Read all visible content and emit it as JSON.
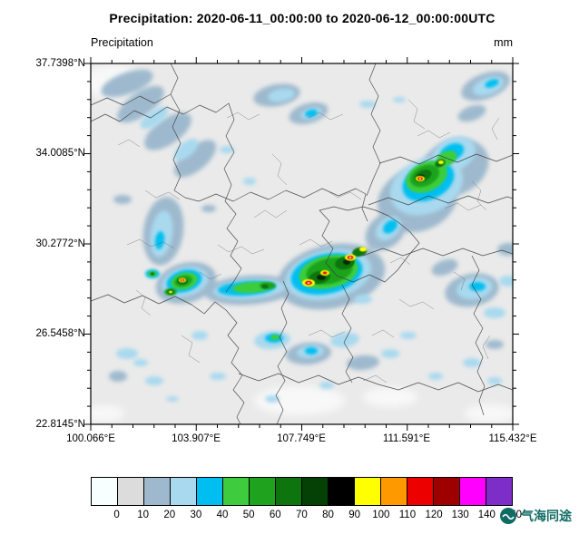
{
  "title": "Precipitation: 2020-06-11_00:00:00 to 2020-06-12_00:00:00UTC",
  "plot_header": {
    "left_label": "Precipitation",
    "right_label": "mm"
  },
  "y_axis": {
    "tick_labels": [
      "37.7398°N",
      "34.0085°N",
      "30.2772°N",
      "26.5458°N",
      "22.8145°N"
    ]
  },
  "x_axis": {
    "tick_labels": [
      "100.066°E",
      "103.907°E",
      "107.749°E",
      "111.591°E",
      "115.432°E"
    ]
  },
  "colorbar": {
    "tick_labels": [
      "0",
      "10",
      "20",
      "30",
      "40",
      "50",
      "60",
      "70",
      "80",
      "90",
      "100",
      "110",
      "120",
      "130",
      "140",
      "150"
    ],
    "colors": [
      "#F8FFFF",
      "#DCDCDC",
      "#9EB9CD",
      "#A8D9EF",
      "#00BFF0",
      "#3ECC3E",
      "#1FA31F",
      "#0E750E",
      "#054005",
      "#000000",
      "#FFFF00",
      "#FF9900",
      "#EC0000",
      "#9E0000",
      "#FF00FF",
      "#7D2EC8"
    ]
  },
  "watermark": {
    "text": "气海同途",
    "color": "#0F6B63"
  },
  "chart_data": {
    "type": "heatmap",
    "title": "Precipitation: 2020-06-11_00:00:00 to 2020-06-12_00:00:00UTC",
    "variable": "Precipitation",
    "unit": "mm",
    "x_tick_labels": [
      "100.066°E",
      "103.907°E",
      "107.749°E",
      "111.591°E",
      "115.432°E"
    ],
    "y_tick_labels": [
      "37.7398°N",
      "34.0085°N",
      "30.2772°N",
      "26.5458°N",
      "22.8145°N"
    ],
    "extent": {
      "lon_min": 100.066,
      "lon_max": 115.432,
      "lat_min": 22.8145,
      "lat_max": 37.7398
    },
    "levels_mm": [
      0,
      10,
      20,
      30,
      40,
      50,
      60,
      70,
      80,
      90,
      100,
      110,
      120,
      130,
      140,
      150
    ],
    "level_colors": [
      "#F8FFFF",
      "#DCDCDC",
      "#9EB9CD",
      "#A8D9EF",
      "#00BFF0",
      "#3ECC3E",
      "#1FA31F",
      "#0E750E",
      "#054005",
      "#000000",
      "#FFFF00",
      "#FF9900",
      "#EC0000",
      "#9E0000",
      "#FF00FF",
      "#7D2EC8"
    ],
    "legend_position": "bottom-horizontal",
    "grid": false
  }
}
